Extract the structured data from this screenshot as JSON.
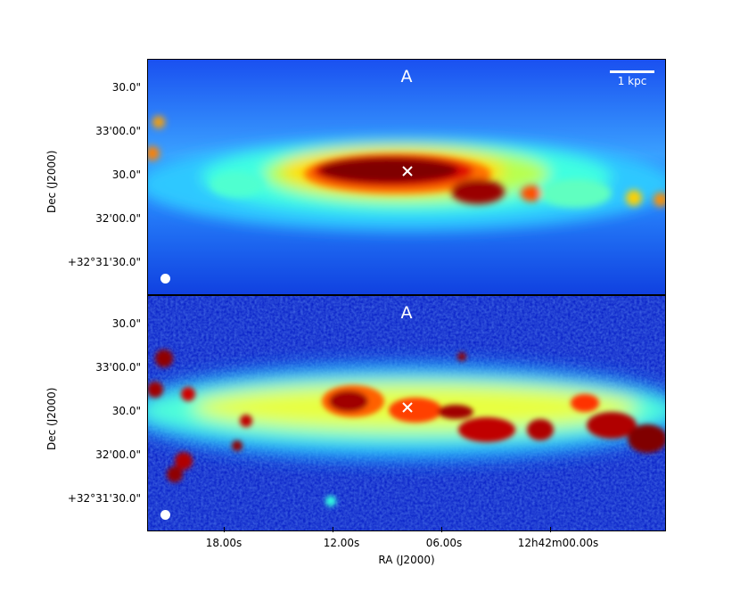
{
  "panels": [
    {
      "label": "A",
      "scale_bar": "1 kpc",
      "yaxis_label": "Dec (J2000)",
      "yticks": [
        "30.0\"",
        "33'00.0\"",
        "30.0\"",
        "32'00.0\"",
        "+32°31'30.0\""
      ]
    },
    {
      "label": "A",
      "yaxis_label": "Dec (J2000)",
      "yticks": [
        "30.0\"",
        "33'00.0\"",
        "30.0\"",
        "32'00.0\"",
        "+32°31'30.0\""
      ]
    }
  ],
  "xaxis": {
    "label": "RA (J2000)",
    "ticks": [
      "18.00s",
      "12.00s",
      "06.00s",
      "12h42m00.00s"
    ]
  },
  "colors": {
    "colormap": "jet",
    "low": "#0000c8",
    "mid": "#00ffff",
    "high": "#ffff00",
    "peak": "#800000"
  }
}
